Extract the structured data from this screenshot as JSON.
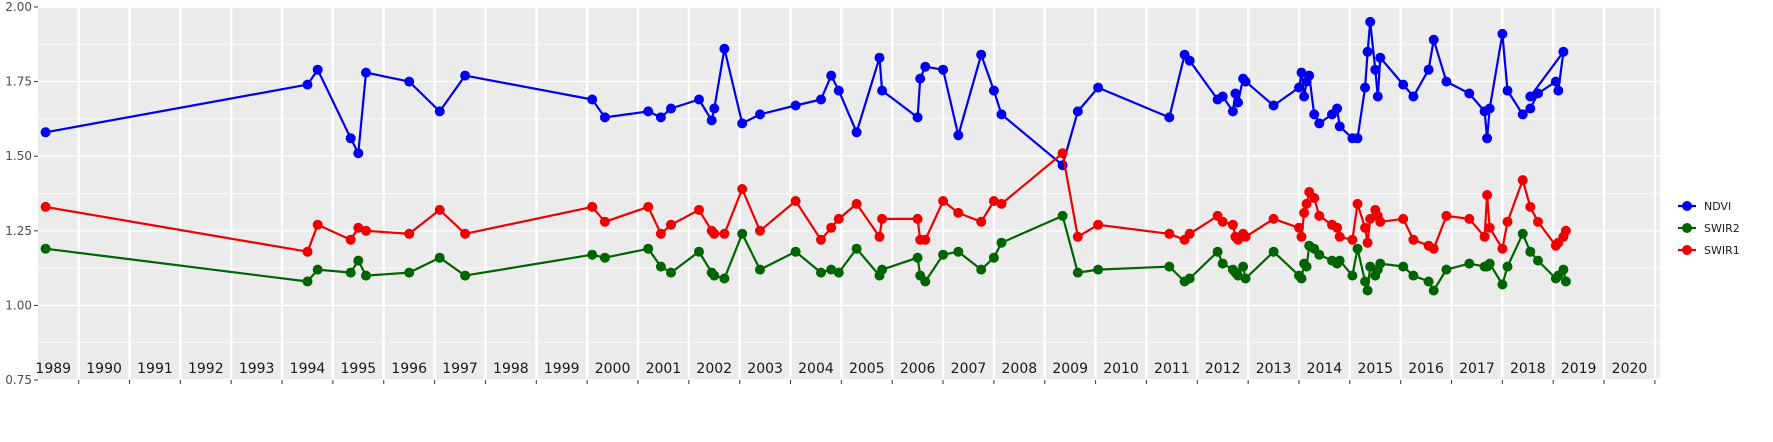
{
  "chart_data": {
    "type": "line",
    "title": "",
    "xlabel": "",
    "ylabel": "",
    "ylim": [
      0.75,
      2.0
    ],
    "y_ticks": [
      "0.75",
      "1.00",
      "1.25",
      "1.50",
      "1.75",
      "2.00"
    ],
    "x_range": [
      1988.7,
      2020.6
    ],
    "years": [
      1989,
      1990,
      1991,
      1992,
      1993,
      1994,
      1995,
      1996,
      1997,
      1998,
      1999,
      2000,
      2001,
      2002,
      2003,
      2004,
      2005,
      2006,
      2007,
      2008,
      2009,
      2010,
      2011,
      2012,
      2013,
      2014,
      2015,
      2016,
      2017,
      2018,
      2019,
      2020
    ],
    "grid": true,
    "legend_position": "right",
    "series": [
      {
        "name": "NDVI",
        "color": "#0000ee",
        "points": [
          [
            1988.85,
            1.58
          ],
          [
            1994.0,
            1.74
          ],
          [
            1994.2,
            1.79
          ],
          [
            1994.85,
            1.56
          ],
          [
            1995.0,
            1.51
          ],
          [
            1995.15,
            1.78
          ],
          [
            1996.0,
            1.75
          ],
          [
            1996.6,
            1.65
          ],
          [
            1997.1,
            1.77
          ],
          [
            1999.6,
            1.69
          ],
          [
            1999.85,
            1.63
          ],
          [
            2000.7,
            1.65
          ],
          [
            2000.95,
            1.63
          ],
          [
            2001.15,
            1.66
          ],
          [
            2001.7,
            1.69
          ],
          [
            2001.95,
            1.62
          ],
          [
            2002.0,
            1.66
          ],
          [
            2002.2,
            1.86
          ],
          [
            2002.55,
            1.61
          ],
          [
            2002.9,
            1.64
          ],
          [
            2003.6,
            1.67
          ],
          [
            2004.1,
            1.69
          ],
          [
            2004.3,
            1.77
          ],
          [
            2004.45,
            1.72
          ],
          [
            2004.8,
            1.58
          ],
          [
            2005.25,
            1.83
          ],
          [
            2005.3,
            1.72
          ],
          [
            2006.0,
            1.63
          ],
          [
            2006.05,
            1.76
          ],
          [
            2006.15,
            1.8
          ],
          [
            2006.5,
            1.79
          ],
          [
            2006.8,
            1.57
          ],
          [
            2007.25,
            1.84
          ],
          [
            2007.5,
            1.72
          ],
          [
            2007.65,
            1.64
          ],
          [
            2008.85,
            1.47
          ],
          [
            2009.15,
            1.65
          ],
          [
            2009.55,
            1.73
          ],
          [
            2010.95,
            1.63
          ],
          [
            2011.25,
            1.84
          ],
          [
            2011.35,
            1.82
          ],
          [
            2011.9,
            1.69
          ],
          [
            2012.0,
            1.7
          ],
          [
            2012.2,
            1.65
          ],
          [
            2012.25,
            1.71
          ],
          [
            2012.3,
            1.68
          ],
          [
            2012.4,
            1.76
          ],
          [
            2012.45,
            1.75
          ],
          [
            2013.0,
            1.67
          ],
          [
            2013.5,
            1.73
          ],
          [
            2013.55,
            1.78
          ],
          [
            2013.6,
            1.7
          ],
          [
            2013.65,
            1.75
          ],
          [
            2013.7,
            1.77
          ],
          [
            2013.8,
            1.64
          ],
          [
            2013.9,
            1.61
          ],
          [
            2014.15,
            1.64
          ],
          [
            2014.25,
            1.66
          ],
          [
            2014.3,
            1.6
          ],
          [
            2014.55,
            1.56
          ],
          [
            2014.65,
            1.56
          ],
          [
            2014.8,
            1.73
          ],
          [
            2014.85,
            1.85
          ],
          [
            2014.9,
            1.95
          ],
          [
            2015.0,
            1.79
          ],
          [
            2015.05,
            1.7
          ],
          [
            2015.1,
            1.83
          ],
          [
            2015.55,
            1.74
          ],
          [
            2015.75,
            1.7
          ],
          [
            2016.05,
            1.79
          ],
          [
            2016.15,
            1.89
          ],
          [
            2016.4,
            1.75
          ],
          [
            2016.85,
            1.71
          ],
          [
            2017.15,
            1.65
          ],
          [
            2017.2,
            1.56
          ],
          [
            2017.25,
            1.66
          ],
          [
            2017.5,
            1.91
          ],
          [
            2017.6,
            1.72
          ],
          [
            2017.9,
            1.64
          ],
          [
            2018.05,
            1.66
          ],
          [
            2018.2,
            1.71
          ],
          [
            2018.55,
            1.75
          ],
          [
            2018.6,
            1.72
          ],
          [
            2018.7,
            1.85
          ],
          [
            2018.05,
            1.7
          ]
        ]
      },
      {
        "name": "SWIR2",
        "color": "#006400",
        "points": [
          [
            1988.85,
            1.19
          ],
          [
            1994.0,
            1.08
          ],
          [
            1994.2,
            1.12
          ],
          [
            1994.85,
            1.11
          ],
          [
            1995.0,
            1.15
          ],
          [
            1995.15,
            1.1
          ],
          [
            1996.0,
            1.11
          ],
          [
            1996.6,
            1.16
          ],
          [
            1997.1,
            1.1
          ],
          [
            1999.6,
            1.17
          ],
          [
            1999.85,
            1.16
          ],
          [
            2000.7,
            1.19
          ],
          [
            2000.95,
            1.13
          ],
          [
            2001.15,
            1.11
          ],
          [
            2001.7,
            1.18
          ],
          [
            2001.95,
            1.11
          ],
          [
            2002.0,
            1.1
          ],
          [
            2002.2,
            1.09
          ],
          [
            2002.55,
            1.24
          ],
          [
            2002.9,
            1.12
          ],
          [
            2003.6,
            1.18
          ],
          [
            2004.1,
            1.11
          ],
          [
            2004.3,
            1.12
          ],
          [
            2004.45,
            1.11
          ],
          [
            2004.8,
            1.19
          ],
          [
            2005.25,
            1.1
          ],
          [
            2005.3,
            1.12
          ],
          [
            2006.0,
            1.16
          ],
          [
            2006.05,
            1.1
          ],
          [
            2006.15,
            1.08
          ],
          [
            2006.5,
            1.17
          ],
          [
            2006.8,
            1.18
          ],
          [
            2007.25,
            1.12
          ],
          [
            2007.5,
            1.16
          ],
          [
            2007.65,
            1.21
          ],
          [
            2008.85,
            1.3
          ],
          [
            2009.15,
            1.11
          ],
          [
            2009.55,
            1.12
          ],
          [
            2010.95,
            1.13
          ],
          [
            2011.25,
            1.08
          ],
          [
            2011.35,
            1.09
          ],
          [
            2011.9,
            1.18
          ],
          [
            2012.0,
            1.14
          ],
          [
            2012.2,
            1.12
          ],
          [
            2012.25,
            1.11
          ],
          [
            2012.3,
            1.1
          ],
          [
            2012.4,
            1.13
          ],
          [
            2012.45,
            1.09
          ],
          [
            2013.0,
            1.18
          ],
          [
            2013.5,
            1.1
          ],
          [
            2013.55,
            1.09
          ],
          [
            2013.6,
            1.14
          ],
          [
            2013.65,
            1.13
          ],
          [
            2013.7,
            1.2
          ],
          [
            2013.8,
            1.19
          ],
          [
            2013.9,
            1.17
          ],
          [
            2014.15,
            1.15
          ],
          [
            2014.25,
            1.14
          ],
          [
            2014.3,
            1.15
          ],
          [
            2014.55,
            1.1
          ],
          [
            2014.65,
            1.19
          ],
          [
            2014.8,
            1.08
          ],
          [
            2014.85,
            1.05
          ],
          [
            2014.9,
            1.13
          ],
          [
            2015.0,
            1.1
          ],
          [
            2015.05,
            1.12
          ],
          [
            2015.1,
            1.14
          ],
          [
            2015.55,
            1.13
          ],
          [
            2015.75,
            1.1
          ],
          [
            2016.05,
            1.08
          ],
          [
            2016.15,
            1.05
          ],
          [
            2016.4,
            1.12
          ],
          [
            2016.85,
            1.14
          ],
          [
            2017.15,
            1.13
          ],
          [
            2017.2,
            1.13
          ],
          [
            2017.25,
            1.14
          ],
          [
            2017.5,
            1.07
          ],
          [
            2017.6,
            1.13
          ],
          [
            2017.9,
            1.24
          ],
          [
            2018.05,
            1.18
          ],
          [
            2018.2,
            1.15
          ],
          [
            2018.55,
            1.09
          ],
          [
            2018.6,
            1.1
          ],
          [
            2018.7,
            1.12
          ],
          [
            2018.75,
            1.08
          ]
        ]
      },
      {
        "name": "SWIR1",
        "color": "#ee0000",
        "points": [
          [
            1988.85,
            1.33
          ],
          [
            1994.0,
            1.18
          ],
          [
            1994.2,
            1.27
          ],
          [
            1994.85,
            1.22
          ],
          [
            1995.0,
            1.26
          ],
          [
            1995.15,
            1.25
          ],
          [
            1996.0,
            1.24
          ],
          [
            1996.6,
            1.32
          ],
          [
            1997.1,
            1.24
          ],
          [
            1999.6,
            1.33
          ],
          [
            1999.85,
            1.28
          ],
          [
            2000.7,
            1.33
          ],
          [
            2000.95,
            1.24
          ],
          [
            2001.15,
            1.27
          ],
          [
            2001.7,
            1.32
          ],
          [
            2001.95,
            1.25
          ],
          [
            2002.0,
            1.24
          ],
          [
            2002.2,
            1.24
          ],
          [
            2002.55,
            1.39
          ],
          [
            2002.9,
            1.25
          ],
          [
            2003.6,
            1.35
          ],
          [
            2004.1,
            1.22
          ],
          [
            2004.3,
            1.26
          ],
          [
            2004.45,
            1.29
          ],
          [
            2004.8,
            1.34
          ],
          [
            2005.25,
            1.23
          ],
          [
            2005.3,
            1.29
          ],
          [
            2006.0,
            1.29
          ],
          [
            2006.05,
            1.22
          ],
          [
            2006.15,
            1.22
          ],
          [
            2006.5,
            1.35
          ],
          [
            2006.8,
            1.31
          ],
          [
            2007.25,
            1.28
          ],
          [
            2007.5,
            1.35
          ],
          [
            2007.65,
            1.34
          ],
          [
            2008.85,
            1.51
          ],
          [
            2009.15,
            1.23
          ],
          [
            2009.55,
            1.27
          ],
          [
            2010.95,
            1.24
          ],
          [
            2011.25,
            1.22
          ],
          [
            2011.35,
            1.24
          ],
          [
            2011.9,
            1.3
          ],
          [
            2012.0,
            1.28
          ],
          [
            2012.2,
            1.27
          ],
          [
            2012.25,
            1.23
          ],
          [
            2012.3,
            1.22
          ],
          [
            2012.4,
            1.24
          ],
          [
            2012.45,
            1.23
          ],
          [
            2013.0,
            1.29
          ],
          [
            2013.5,
            1.26
          ],
          [
            2013.55,
            1.23
          ],
          [
            2013.6,
            1.31
          ],
          [
            2013.65,
            1.34
          ],
          [
            2013.7,
            1.38
          ],
          [
            2013.8,
            1.36
          ],
          [
            2013.9,
            1.3
          ],
          [
            2014.15,
            1.27
          ],
          [
            2014.25,
            1.26
          ],
          [
            2014.3,
            1.23
          ],
          [
            2014.55,
            1.22
          ],
          [
            2014.65,
            1.34
          ],
          [
            2014.8,
            1.26
          ],
          [
            2014.85,
            1.21
          ],
          [
            2014.9,
            1.29
          ],
          [
            2015.0,
            1.32
          ],
          [
            2015.05,
            1.3
          ],
          [
            2015.1,
            1.28
          ],
          [
            2015.55,
            1.29
          ],
          [
            2015.75,
            1.22
          ],
          [
            2016.05,
            1.2
          ],
          [
            2016.15,
            1.19
          ],
          [
            2016.4,
            1.3
          ],
          [
            2016.85,
            1.29
          ],
          [
            2017.15,
            1.23
          ],
          [
            2017.2,
            1.37
          ],
          [
            2017.25,
            1.26
          ],
          [
            2017.5,
            1.19
          ],
          [
            2017.6,
            1.28
          ],
          [
            2017.9,
            1.42
          ],
          [
            2018.05,
            1.33
          ],
          [
            2018.2,
            1.28
          ],
          [
            2018.55,
            1.2
          ],
          [
            2018.6,
            1.21
          ],
          [
            2018.7,
            1.23
          ],
          [
            2018.75,
            1.25
          ]
        ]
      }
    ]
  }
}
